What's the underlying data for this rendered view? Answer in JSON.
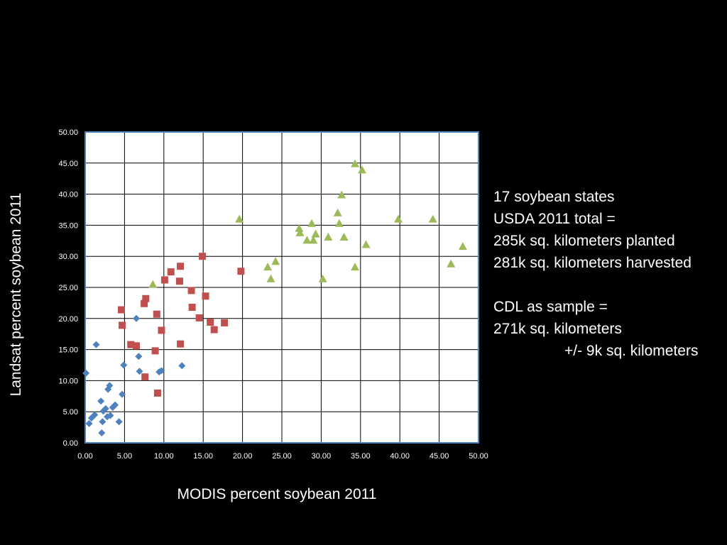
{
  "chart_data": {
    "type": "scatter",
    "xlabel": "MODIS percent soybean 2011",
    "ylabel": "Landsat percent soybean 2011",
    "xlim": [
      0,
      50
    ],
    "ylim": [
      0,
      50
    ],
    "xticks": [
      "0.00",
      "5.00",
      "10.00",
      "15.00",
      "20.00",
      "25.00",
      "30.00",
      "35.00",
      "40.00",
      "45.00",
      "50.00"
    ],
    "yticks": [
      "0.00",
      "5.00",
      "10.00",
      "15.00",
      "20.00",
      "25.00",
      "30.00",
      "35.00",
      "40.00",
      "45.00",
      "50.00"
    ],
    "grid": true,
    "series": [
      {
        "marker": "diamond",
        "color": "#4f81bd",
        "points": [
          [
            0.1,
            11.2
          ],
          [
            0.5,
            3.1
          ],
          [
            0.8,
            4.0
          ],
          [
            1.2,
            4.5
          ],
          [
            1.4,
            15.8
          ],
          [
            2.0,
            6.7
          ],
          [
            2.1,
            1.6
          ],
          [
            2.2,
            3.4
          ],
          [
            2.3,
            5.1
          ],
          [
            2.6,
            5.5
          ],
          [
            2.8,
            4.2
          ],
          [
            2.9,
            8.6
          ],
          [
            3.1,
            9.2
          ],
          [
            3.2,
            4.4
          ],
          [
            3.5,
            5.7
          ],
          [
            3.8,
            6.1
          ],
          [
            4.3,
            3.4
          ],
          [
            4.7,
            7.8
          ],
          [
            4.9,
            12.5
          ],
          [
            6.5,
            20.0
          ],
          [
            6.8,
            13.9
          ],
          [
            6.9,
            11.5
          ],
          [
            9.4,
            11.4
          ],
          [
            9.7,
            11.6
          ],
          [
            12.3,
            12.4
          ]
        ]
      },
      {
        "marker": "square",
        "color": "#c0504d",
        "points": [
          [
            4.6,
            21.4
          ],
          [
            4.7,
            18.9
          ],
          [
            5.8,
            15.8
          ],
          [
            6.5,
            15.6
          ],
          [
            7.5,
            22.4
          ],
          [
            7.6,
            10.6
          ],
          [
            7.7,
            23.2
          ],
          [
            8.9,
            14.8
          ],
          [
            9.1,
            20.7
          ],
          [
            9.2,
            8.0
          ],
          [
            9.7,
            18.1
          ],
          [
            10.1,
            26.2
          ],
          [
            10.9,
            27.5
          ],
          [
            12.0,
            26.0
          ],
          [
            12.1,
            28.4
          ],
          [
            12.1,
            15.9
          ],
          [
            13.5,
            24.5
          ],
          [
            13.6,
            21.8
          ],
          [
            14.5,
            20.1
          ],
          [
            14.9,
            30.0
          ],
          [
            15.3,
            23.6
          ],
          [
            15.9,
            19.4
          ],
          [
            16.4,
            18.2
          ],
          [
            17.7,
            19.3
          ],
          [
            19.8,
            27.6
          ]
        ]
      },
      {
        "marker": "triangle",
        "color": "#9bbb59",
        "points": [
          [
            8.6,
            25.5
          ],
          [
            19.6,
            36.0
          ],
          [
            23.2,
            28.3
          ],
          [
            23.6,
            26.4
          ],
          [
            24.2,
            29.2
          ],
          [
            27.2,
            34.5
          ],
          [
            27.3,
            33.8
          ],
          [
            28.2,
            32.6
          ],
          [
            28.8,
            35.3
          ],
          [
            29.0,
            32.6
          ],
          [
            29.3,
            33.6
          ],
          [
            30.2,
            26.4
          ],
          [
            30.9,
            33.1
          ],
          [
            32.1,
            37.0
          ],
          [
            32.3,
            35.3
          ],
          [
            32.6,
            39.9
          ],
          [
            32.9,
            33.1
          ],
          [
            34.3,
            28.3
          ],
          [
            34.3,
            44.9
          ],
          [
            35.2,
            43.9
          ],
          [
            35.7,
            31.9
          ],
          [
            39.8,
            36.0
          ],
          [
            44.2,
            36.0
          ],
          [
            46.5,
            28.8
          ],
          [
            48.0,
            31.6
          ]
        ]
      }
    ]
  },
  "annotation": {
    "lines": [
      "17 soybean states",
      "USDA 2011 total =",
      "285k sq. kilometers planted",
      "281k sq. kilometers harvested",
      "",
      "CDL as sample =",
      "271k sq. kilometers",
      "+/- 9k sq. kilometers"
    ]
  }
}
